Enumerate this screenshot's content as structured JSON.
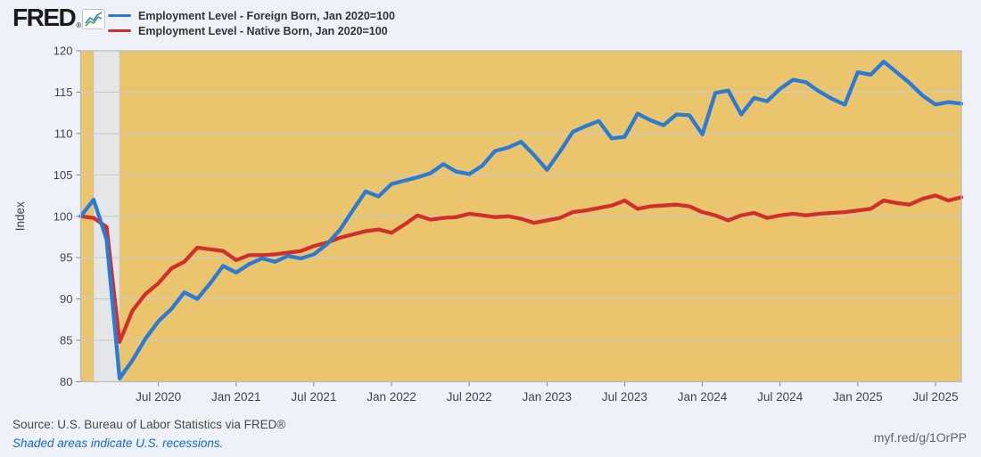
{
  "header": {
    "logo_text": "FRED",
    "logo_registered": "®",
    "legend": [
      {
        "label": "Employment Level - Foreign Born, Jan 2020=100",
        "color": "#2b7bd4"
      },
      {
        "label": "Employment Level - Native Born, Jan 2020=100",
        "color": "#d12f2b"
      }
    ]
  },
  "chart_data": {
    "type": "line",
    "ylabel": "Index",
    "ylim": [
      80,
      120
    ],
    "yticks": [
      80,
      85,
      90,
      95,
      100,
      105,
      110,
      115,
      120
    ],
    "grid": true,
    "x_start_label": "Jan 2020",
    "x_end_label": "Sep 2025",
    "n_points": 69,
    "x_tick_month_index": [
      6,
      12,
      18,
      24,
      30,
      36,
      42,
      48,
      54,
      60,
      66
    ],
    "x_tick_labels": [
      "Jul 2020",
      "Jan 2021",
      "Jul 2021",
      "Jan 2022",
      "Jul 2022",
      "Jan 2023",
      "Jul 2023",
      "Jan 2024",
      "Jul 2024",
      "Jan 2025",
      "Jul 2025"
    ],
    "recession_band": {
      "start_month_index": 1,
      "end_month_index": 3
    },
    "colors": {
      "plot_background": "#eac56e",
      "recession_shading": "#e5e6e8",
      "gridline": "#cbcbcb",
      "plot_border": "#b5bac0",
      "tick_mark": "#808080",
      "tick_label": "#444444"
    },
    "series": [
      {
        "name": "Employment Level - Foreign Born, Jan 2020=100",
        "color": "#2b7bd4",
        "values": [
          100.0,
          102.0,
          97.2,
          80.4,
          82.6,
          85.2,
          87.3,
          88.8,
          90.8,
          90.0,
          91.9,
          94.0,
          93.2,
          94.2,
          94.9,
          94.5,
          95.2,
          94.9,
          95.4,
          96.6,
          98.3,
          100.7,
          103.0,
          102.4,
          103.9,
          104.3,
          104.7,
          105.2,
          106.3,
          105.4,
          105.1,
          106.1,
          107.9,
          108.3,
          109.0,
          107.4,
          105.6,
          107.8,
          110.2,
          110.9,
          111.5,
          109.4,
          109.6,
          112.4,
          111.6,
          111.0,
          112.3,
          112.2,
          109.9,
          114.9,
          115.2,
          112.3,
          114.3,
          113.9,
          115.4,
          116.5,
          116.2,
          115.1,
          114.2,
          113.5,
          117.4,
          117.1,
          118.7,
          117.4,
          116.1,
          114.6,
          113.5,
          113.8,
          113.6
        ]
      },
      {
        "name": "Employment Level - Native Born, Jan 2020=100",
        "color": "#d12f2b",
        "values": [
          100.0,
          99.8,
          98.7,
          84.8,
          88.6,
          90.6,
          91.9,
          93.7,
          94.5,
          96.2,
          96.0,
          95.8,
          94.7,
          95.3,
          95.3,
          95.4,
          95.6,
          95.8,
          96.4,
          96.8,
          97.4,
          97.8,
          98.2,
          98.4,
          98.0,
          99.0,
          100.1,
          99.6,
          99.8,
          99.9,
          100.3,
          100.1,
          99.9,
          100.0,
          99.7,
          99.2,
          99.5,
          99.8,
          100.5,
          100.7,
          101.0,
          101.3,
          101.9,
          100.9,
          101.2,
          101.3,
          101.4,
          101.2,
          100.5,
          100.1,
          99.5,
          100.1,
          100.4,
          99.8,
          100.1,
          100.3,
          100.1,
          100.3,
          100.4,
          100.5,
          100.7,
          100.9,
          101.9,
          101.6,
          101.4,
          102.1,
          102.5,
          101.9,
          102.3
        ]
      }
    ]
  },
  "footer": {
    "source": "Source: U.S. Bureau of Labor Statistics via FRED®",
    "note": "Shaded areas indicate U.S. recessions.",
    "short_url": "myf.red/g/1OrPP"
  }
}
